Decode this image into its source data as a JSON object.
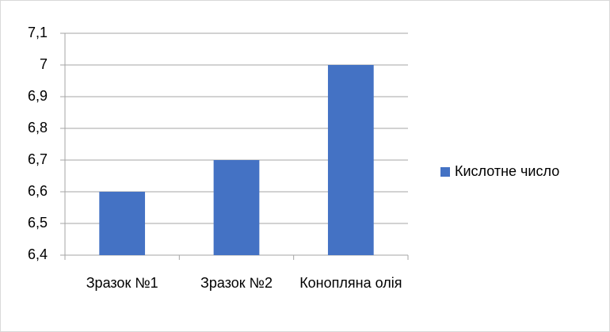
{
  "chart_data": {
    "type": "bar",
    "categories": [
      "Зразок №1",
      "Зразок №2",
      "Конопляна олія"
    ],
    "series": [
      {
        "name": "Кислотне число",
        "color": "#4472c4",
        "values": [
          6.6,
          6.7,
          7
        ]
      }
    ],
    "ylim": [
      6.4,
      7.1
    ],
    "yticks": [
      {
        "value": 6.4,
        "label": "6,4"
      },
      {
        "value": 6.5,
        "label": "6,5"
      },
      {
        "value": 6.6,
        "label": "6,6"
      },
      {
        "value": 6.7,
        "label": "6,7"
      },
      {
        "value": 6.8,
        "label": "6,8"
      },
      {
        "value": 6.9,
        "label": "6,9"
      },
      7,
      {
        "value": 7.1,
        "label": "7,1"
      }
    ],
    "grid": true,
    "legend": "right"
  }
}
